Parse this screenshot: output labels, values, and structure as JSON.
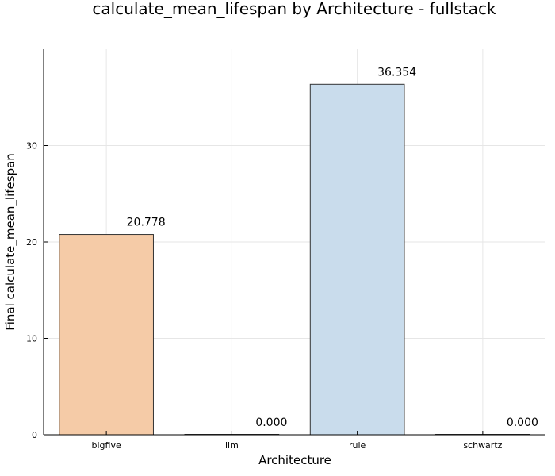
{
  "chart_data": {
    "type": "bar",
    "title": "calculate_mean_lifespan by Architecture - fullstack",
    "xlabel": "Architecture",
    "ylabel": "Final calculate_mean_lifespan",
    "categories": [
      "bigfive",
      "llm",
      "rule",
      "schwartz"
    ],
    "values": [
      20.778,
      0.0,
      36.354,
      0.0
    ],
    "value_labels": [
      "20.778",
      "0.000",
      "36.354",
      "0.000"
    ],
    "colors": [
      "#f5cba7",
      "#f5cba7",
      "#c9dcec",
      "#c9dcec"
    ],
    "ylim": [
      0,
      40
    ],
    "yticks": [
      0,
      10,
      20,
      30
    ],
    "ytick_labels": [
      "0",
      "10",
      "20",
      "30"
    ],
    "grid": true,
    "legend": false
  }
}
